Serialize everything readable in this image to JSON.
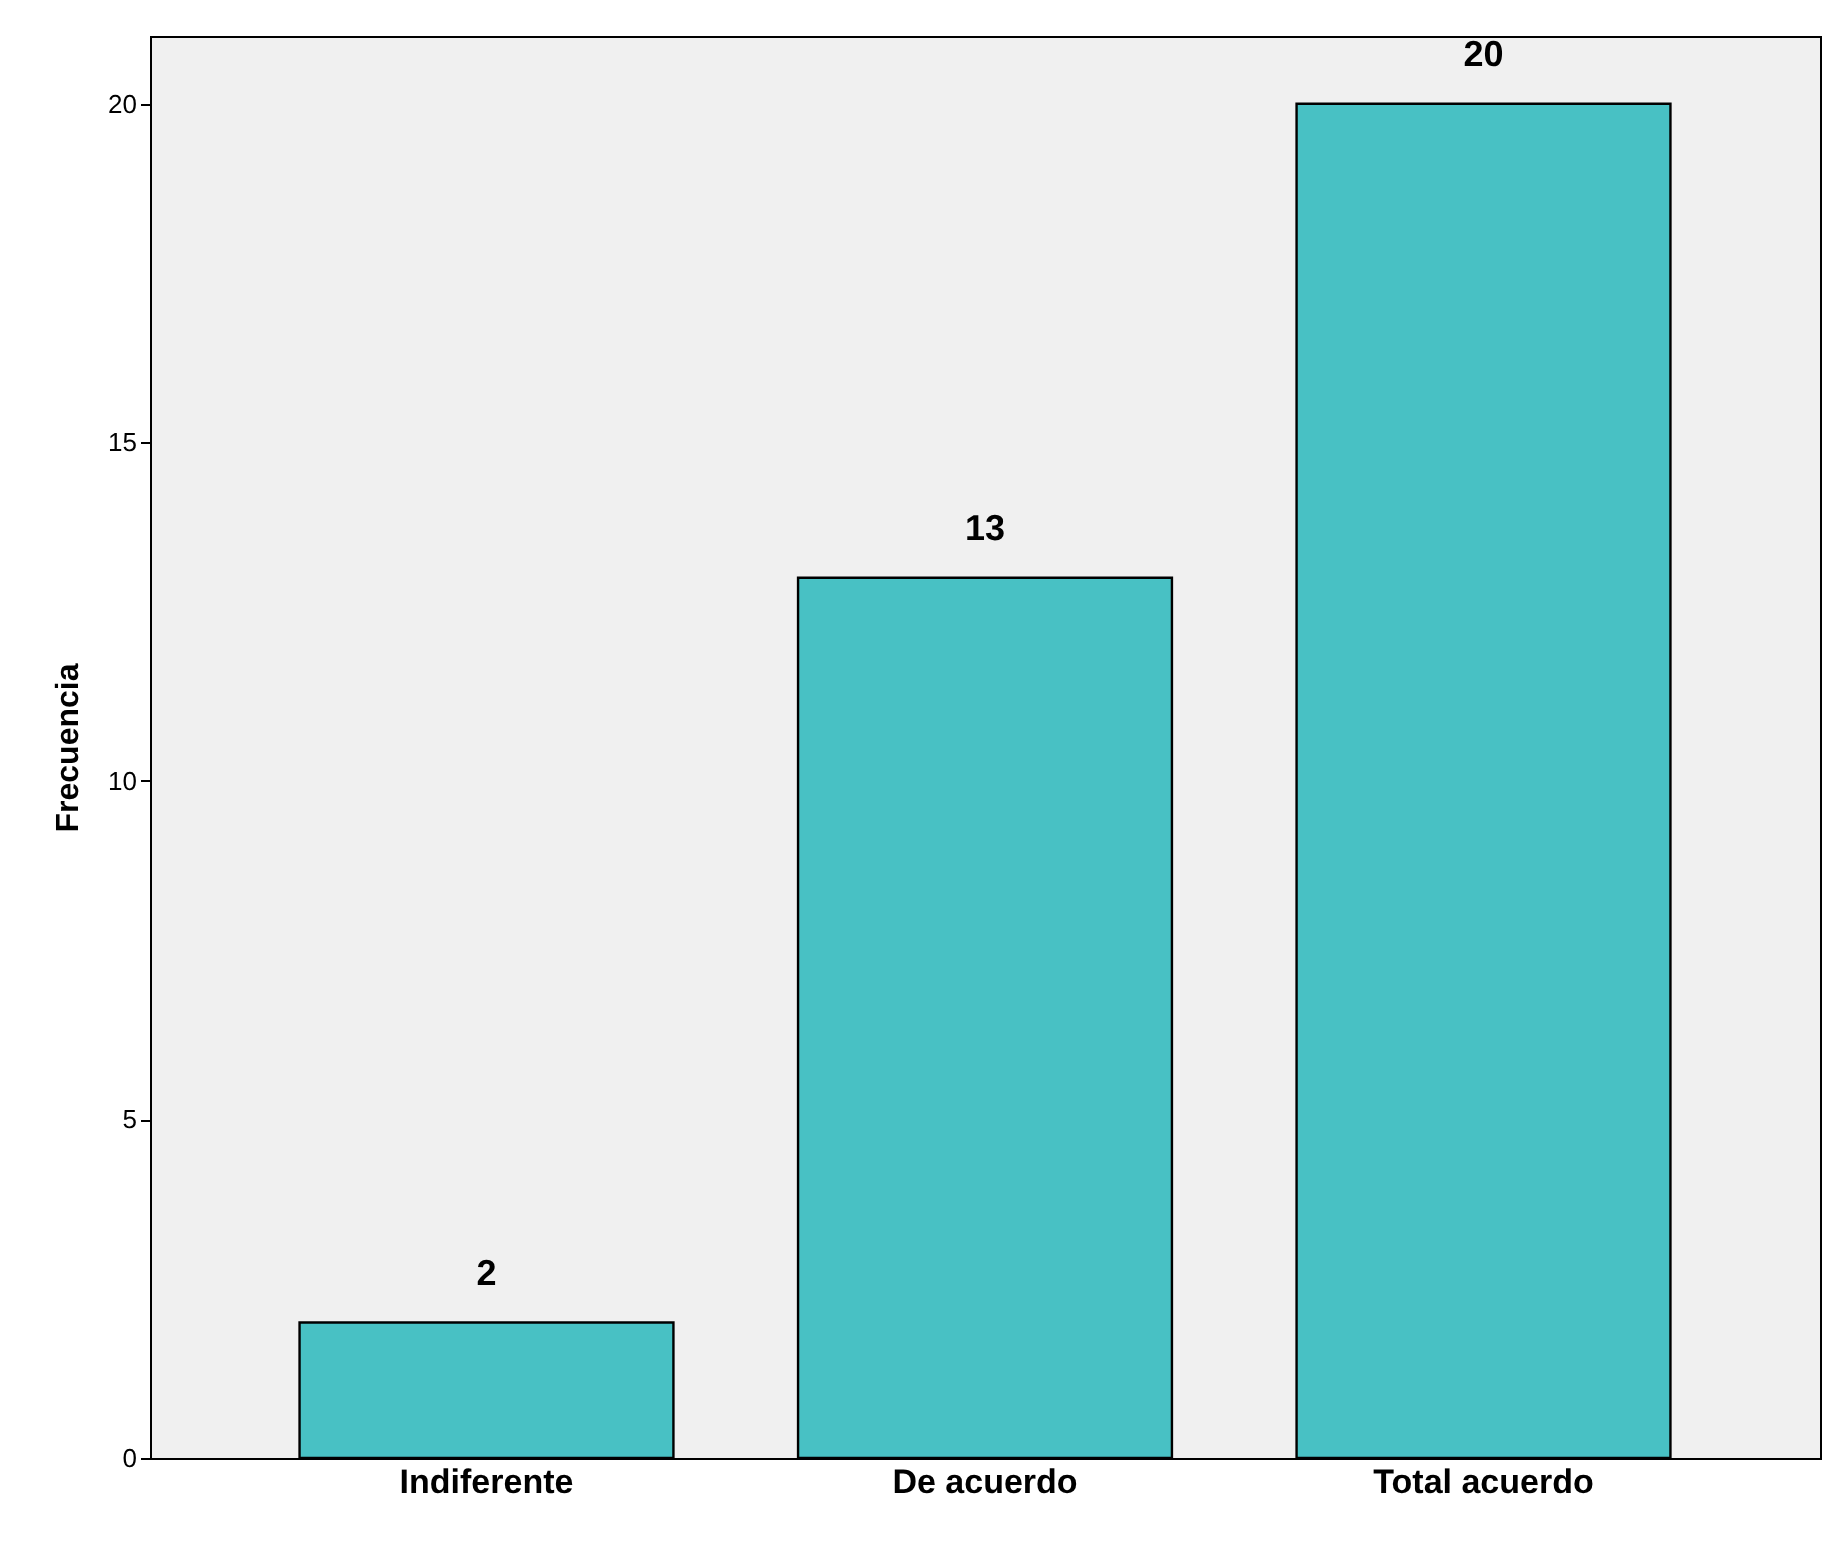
{
  "chart_data": {
    "type": "bar",
    "ylabel": "Frecuencia",
    "categories": [
      "Indiferente",
      "De acuerdo",
      "Total acuerdo"
    ],
    "values": [
      2,
      13,
      20
    ],
    "color": "#48c1c4",
    "ylim": [
      0,
      21
    ],
    "yticks": [
      0,
      5,
      10,
      15,
      20
    ],
    "grid": false,
    "data_labels": true
  }
}
